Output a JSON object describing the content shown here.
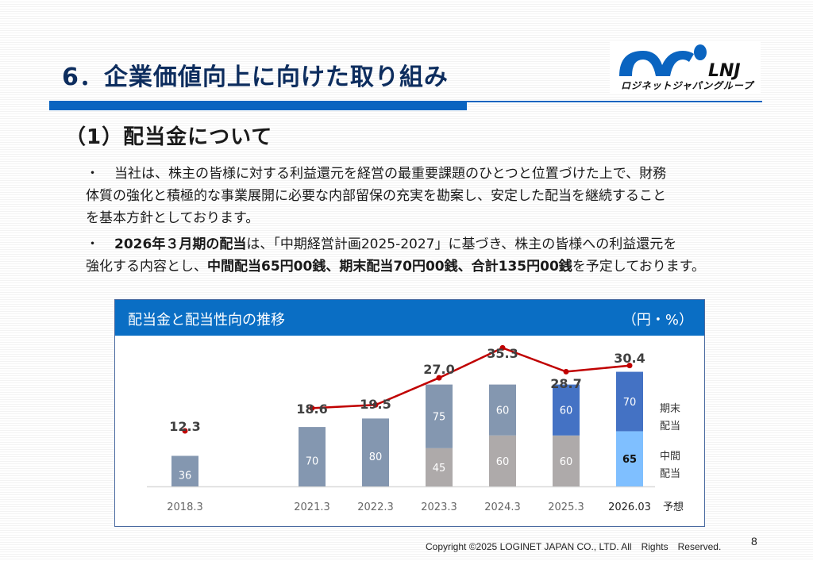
{
  "header": {
    "title": "6．企業価値向上に向けた取り組み",
    "logo_text": "LNJ",
    "logo_subtext": "ロジネットジャパングループ"
  },
  "section": {
    "subtitle": "（1）配当金について"
  },
  "paragraphs": {
    "p1_bullet": "・",
    "p1_line1": "当社は、株主の皆様に対する利益還元を経営の最重要課題のひとつと位置づけた上で、財務",
    "p1_line2": "体質の強化と積極的な事業展開に必要な内部留保の充実を勘案し、安定した配当を継続すること",
    "p1_line3": "を基本方針としております。",
    "p2_bullet": "・",
    "p2_bold1": "2026年３月期の配当",
    "p2_text1": "は、「中期経営計画2025-2027」に基づき、株主の皆様への利益還元を",
    "p2_text2": "強化する内容とし、",
    "p2_bold2": "中間配当65円00銭、期末配当70円00銭、合計135円00銭",
    "p2_text3": "を予定しております。"
  },
  "chart_panel": {
    "title": "配当金と配当性向の推移",
    "unit": "（円・%）"
  },
  "chart_data": {
    "type": "bar",
    "title": "配当金と配当性向の推移",
    "unit": "（円・%）",
    "categories": [
      "2018.3",
      "2021.3",
      "2022.3",
      "2023.3",
      "2024.3",
      "2025.3",
      "2026.03"
    ],
    "forecast_suffix": "予想",
    "series": [
      {
        "name": "中間配当",
        "values": [
          null,
          null,
          null,
          45,
          60,
          60,
          65
        ]
      },
      {
        "name": "期末配当",
        "values": [
          36,
          70,
          80,
          75,
          60,
          60,
          70
        ]
      },
      {
        "name": "配当性向",
        "type": "line",
        "values": [
          12.3,
          18.6,
          19.5,
          27.0,
          35.3,
          28.7,
          30.4
        ]
      }
    ],
    "payout_labels": [
      "12.3",
      "18.6",
      "19.5",
      "27.0",
      "35.3",
      "28.7",
      "30.4"
    ],
    "legend": {
      "year_end": "期末\n配当",
      "year_end_line1": "期末",
      "year_end_line2": "配当",
      "interim_line1": "中間",
      "interim_line2": "配当"
    },
    "colors": {
      "annual_single": "#8497b0",
      "interim_past": "#aeaaaa",
      "year_end_past": "#8497b0",
      "year_end_2025": "#4472c4",
      "interim_forecast": "#7fbfff",
      "year_end_forecast": "#4472c4",
      "line": "#c00000"
    }
  },
  "footer": {
    "copyright": "Copyright ©2025 LOGINET JAPAN CO., LTD. All　Rights　Reserved.",
    "page": "8"
  }
}
